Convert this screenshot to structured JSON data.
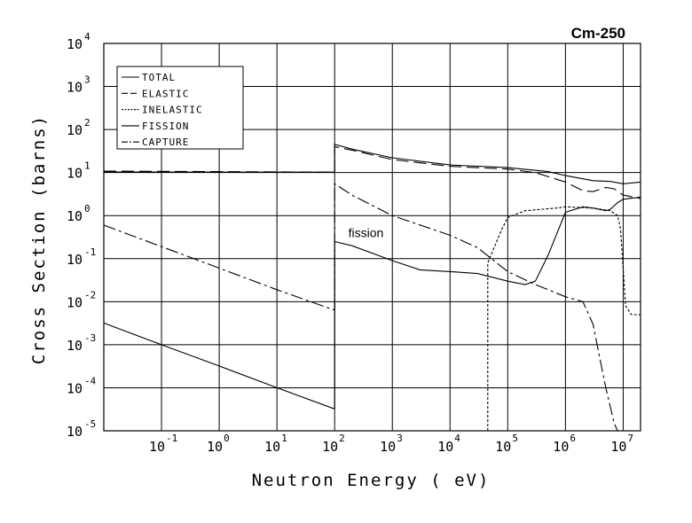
{
  "chart_data": {
    "type": "line",
    "title": "Cm-250",
    "xlabel": "Neutron Energy ( eV)",
    "ylabel": "Cross Section (barns)",
    "x_scale": "log",
    "y_scale": "log",
    "xlim": [
      0.01,
      20000000
    ],
    "ylim": [
      1e-05,
      10000
    ],
    "grid": true,
    "legend_position": "top-left",
    "x_ticks": [
      {
        "base": "10",
        "exp": "-1",
        "value": 0.1
      },
      {
        "base": "10",
        "exp": "0",
        "value": 1
      },
      {
        "base": "10",
        "exp": "1",
        "value": 10
      },
      {
        "base": "10",
        "exp": "2",
        "value": 100
      },
      {
        "base": "10",
        "exp": "3",
        "value": 1000
      },
      {
        "base": "10",
        "exp": "4",
        "value": 10000
      },
      {
        "base": "10",
        "exp": "5",
        "value": 100000
      },
      {
        "base": "10",
        "exp": "6",
        "value": 1000000
      },
      {
        "base": "10",
        "exp": "7",
        "value": 10000000
      }
    ],
    "y_ticks": [
      {
        "base": "10",
        "exp": "4",
        "value": 10000
      },
      {
        "base": "10",
        "exp": "3",
        "value": 1000
      },
      {
        "base": "10",
        "exp": "2",
        "value": 100
      },
      {
        "base": "10",
        "exp": "1",
        "value": 10
      },
      {
        "base": "10",
        "exp": "0",
        "value": 1
      },
      {
        "base": "10",
        "exp": "-1",
        "value": 0.1
      },
      {
        "base": "10",
        "exp": "-2",
        "value": 0.01
      },
      {
        "base": "10",
        "exp": "-3",
        "value": 0.001
      },
      {
        "base": "10",
        "exp": "-4",
        "value": 0.0001
      },
      {
        "base": "10",
        "exp": "-5",
        "value": 1e-05
      }
    ],
    "annotations": [
      {
        "text": "fission",
        "x": 150,
        "y": 0.3
      }
    ],
    "series": [
      {
        "name": "TOTAL",
        "dash": "solid",
        "points": [
          [
            0.01,
            10.3
          ],
          [
            1,
            10.2
          ],
          [
            95,
            10.2
          ],
          [
            100,
            10.2
          ],
          [
            100,
            45
          ],
          [
            200,
            35
          ],
          [
            1000,
            22
          ],
          [
            10000,
            15
          ],
          [
            100000,
            13
          ],
          [
            500000,
            10.5
          ],
          [
            1000000,
            8.5
          ],
          [
            3000000,
            6.5
          ],
          [
            6000000,
            6.2
          ],
          [
            10000000,
            5.5
          ],
          [
            20000000,
            6
          ]
        ]
      },
      {
        "name": "ELASTIC",
        "dash": "14,6",
        "points": [
          [
            0.01,
            10.8
          ],
          [
            1,
            10.5
          ],
          [
            95,
            10.2
          ],
          [
            100,
            10.2
          ],
          [
            100,
            40
          ],
          [
            200,
            33
          ],
          [
            1000,
            20
          ],
          [
            10000,
            14
          ],
          [
            100000,
            12
          ],
          [
            300000,
            10
          ],
          [
            1000000,
            6
          ],
          [
            2000000,
            3.8
          ],
          [
            3000000,
            3.6
          ],
          [
            5000000,
            4.5
          ],
          [
            7000000,
            4.2
          ],
          [
            10000000,
            3
          ],
          [
            20000000,
            2.5
          ]
        ]
      },
      {
        "name": "INELASTIC",
        "dash": "3,2",
        "points": [
          [
            45000,
            1e-05
          ],
          [
            45000,
            0.08
          ],
          [
            60000,
            0.2
          ],
          [
            80000,
            0.5
          ],
          [
            100000,
            0.9
          ],
          [
            200000,
            1.3
          ],
          [
            700000,
            1.5
          ],
          [
            1000000,
            1.6
          ],
          [
            3000000,
            1.5
          ],
          [
            6000000,
            1.3
          ],
          [
            8000000,
            1.0
          ],
          [
            9000000,
            0.5
          ],
          [
            10000000,
            0.06
          ],
          [
            11000000,
            0.008
          ],
          [
            14000000,
            0.005
          ],
          [
            20000000,
            0.005
          ]
        ]
      },
      {
        "name": "FISSION",
        "dash": "solid",
        "points": [
          [
            0.01,
            0.0032
          ],
          [
            0.1,
            0.001
          ],
          [
            1,
            0.00032
          ],
          [
            10,
            0.0001
          ],
          [
            95,
            3.3e-05
          ],
          [
            100,
            3.3e-05
          ],
          [
            100,
            0.25
          ],
          [
            200,
            0.2
          ],
          [
            1000,
            0.09
          ],
          [
            3000,
            0.055
          ],
          [
            10000,
            0.05
          ],
          [
            30000,
            0.045
          ],
          [
            100000,
            0.03
          ],
          [
            200000,
            0.025
          ],
          [
            300000,
            0.03
          ],
          [
            500000,
            0.12
          ],
          [
            1000000,
            1.2
          ],
          [
            2000000,
            1.6
          ],
          [
            3000000,
            1.5
          ],
          [
            5000000,
            1.3
          ],
          [
            6000000,
            1.4
          ],
          [
            8000000,
            2.0
          ],
          [
            10000000,
            2.4
          ],
          [
            20000000,
            2.7
          ]
        ]
      },
      {
        "name": "CAPTURE",
        "dash": "14,4,3,4",
        "points": [
          [
            0.01,
            0.6
          ],
          [
            0.1,
            0.19
          ],
          [
            1,
            0.06
          ],
          [
            10,
            0.019
          ],
          [
            95,
            0.0065
          ],
          [
            100,
            0.0065
          ],
          [
            100,
            5.5
          ],
          [
            200,
            3
          ],
          [
            1000,
            1
          ],
          [
            10000,
            0.35
          ],
          [
            30000,
            0.18
          ],
          [
            100000,
            0.05
          ],
          [
            300000,
            0.025
          ],
          [
            1000000,
            0.013
          ],
          [
            2000000,
            0.01
          ],
          [
            3000000,
            0.003
          ],
          [
            5000000,
            0.0001
          ],
          [
            7000000,
            1.5e-05
          ],
          [
            8000000,
            1e-05
          ]
        ]
      }
    ]
  }
}
